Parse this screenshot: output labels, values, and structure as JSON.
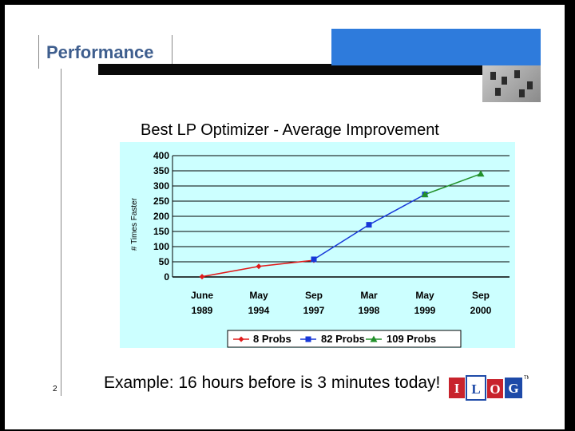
{
  "slide": {
    "title": "Performance",
    "page_number": "2",
    "footer": "Example: 16 hours before is 3 minutes today!",
    "logo_text": "ILOG",
    "logo_tm": "TM"
  },
  "colors": {
    "title": "#3e5e8e",
    "accent_block": "#2e7bdc",
    "plot_background": "#ccffff",
    "series_8": "#e11b1b",
    "series_82": "#1737d8",
    "series_109": "#22902a"
  },
  "chart_data": {
    "type": "line",
    "title": "Best LP Optimizer - Average Improvement",
    "xlabel": "",
    "ylabel": "# Times Faster",
    "ylim": [
      0,
      400
    ],
    "yticks": [
      "400",
      "350",
      "300",
      "250",
      "200",
      "150",
      "100",
      "50",
      "0"
    ],
    "grid": true,
    "legend_position": "bottom",
    "categories": [
      [
        "June",
        "1989"
      ],
      [
        "May",
        "1994"
      ],
      [
        "Sep",
        "1997"
      ],
      [
        "Mar",
        "1998"
      ],
      [
        "May",
        "1999"
      ],
      [
        "Sep",
        "2000"
      ]
    ],
    "series": [
      {
        "name": "8 Probs",
        "marker": "diamond",
        "color": "#e11b1b",
        "values": [
          1,
          35,
          55,
          null,
          null,
          null
        ]
      },
      {
        "name": "82 Probs",
        "marker": "square",
        "color": "#1737d8",
        "values": [
          null,
          null,
          58,
          172,
          272,
          null
        ]
      },
      {
        "name": "109 Probs",
        "marker": "triangle",
        "color": "#22902a",
        "values": [
          null,
          null,
          null,
          null,
          272,
          340
        ]
      }
    ]
  }
}
